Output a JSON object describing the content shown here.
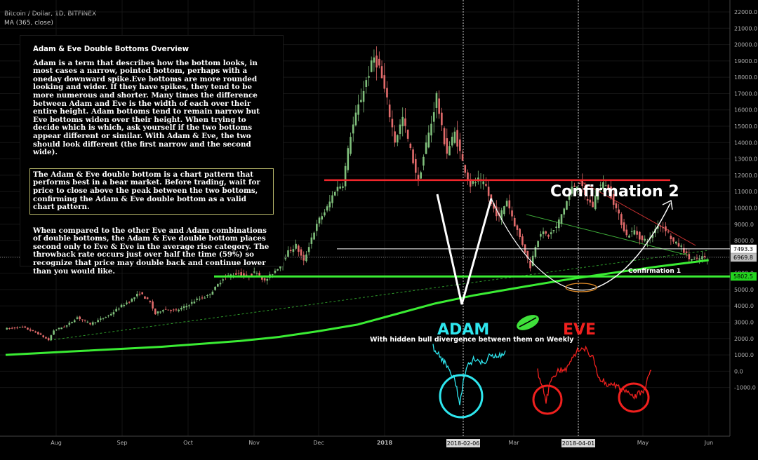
{
  "header": {
    "symbol": "Bitcoin / Dollar, 1D, BITFINEX",
    "indicator": "MA (365, close)"
  },
  "info_box": {
    "title": "Adam & Eve Double Bottoms Overview",
    "para1": "Adam is a term that describes how the bottom looks, in most cases a narrow, pointed bottom, perhaps with a oneday downward spike.Eve bottoms are more rounded looking and wider. If they have spikes, they tend to be more numerous and shorter. Many times the difference between Adam and Eve is the width of each over their entire height. Adam bottoms tend to remain narrow but Eve bottoms widen over their height. When trying to decide which is which, ask yourself if the two bottoms appear different or similar. With Adam & Eve, the two should look different (the first narrow and the second wide).",
    "para2": "The Adam & Eve double bottom is a chart pattern that performs best in a bear market. Before trading, wait for price to close above the peak between the two bottoms, confirming the Adam & Eve double bottom as a valid chart pattern.",
    "para3": "When compared to the other Eve and Adam combinations of double bottoms, the Adam & Eve double bottom places second only to Eve & Eve in the average rise category. The throwback rate occurs just over half the time (59%) so recognize that price may double back and continue lower than you would like."
  },
  "chart_data": {
    "type": "candlestick",
    "y_ticks": [
      "22000.0",
      "21000.0",
      "20000.0",
      "19000.0",
      "18000.0",
      "17000.0",
      "16000.0",
      "15000.0",
      "14000.0",
      "13000.0",
      "12000.0",
      "11000.0",
      "10000.0",
      "9000.0",
      "8000.0",
      "7000.0",
      "6000.0",
      "5000.0",
      "4000.0",
      "3000.0",
      "2000.0",
      "1000.0",
      "0.0",
      "-1000.0"
    ],
    "ylim": [
      -1400,
      22300
    ],
    "x_ticks": [
      "Aug",
      "Sep",
      "Oct",
      "Nov",
      "Dec",
      "2018",
      "Mar",
      "Apr",
      "May",
      "Jun"
    ],
    "x_highlight": [
      "2018-02-06",
      "2018-04-01"
    ],
    "price_labels": [
      {
        "text": "7493.3",
        "value": 7493.3,
        "color": "#ffffff"
      },
      {
        "text": "6969.8",
        "value": 6969.8,
        "color": "#d9d9d9"
      },
      {
        "text": "5802.5",
        "value": 5802.5,
        "color": "#22d41e"
      }
    ],
    "price_path": [
      [
        0,
        2600
      ],
      [
        7,
        2700
      ],
      [
        13,
        2300
      ],
      [
        17,
        1900
      ],
      [
        19,
        2500
      ],
      [
        24,
        2800
      ],
      [
        28,
        3300
      ],
      [
        33,
        2900
      ],
      [
        40,
        3400
      ],
      [
        45,
        4000
      ],
      [
        49,
        4400
      ],
      [
        52,
        4800
      ],
      [
        56,
        4200
      ],
      [
        58,
        3500
      ],
      [
        61,
        3800
      ],
      [
        66,
        3700
      ],
      [
        70,
        4000
      ],
      [
        74,
        4400
      ],
      [
        78,
        4600
      ],
      [
        81,
        5100
      ],
      [
        84,
        5700
      ],
      [
        87,
        5900
      ],
      [
        90,
        6000
      ],
      [
        93,
        5800
      ],
      [
        97,
        6100
      ],
      [
        100,
        5500
      ],
      [
        103,
        6000
      ],
      [
        106,
        6500
      ],
      [
        109,
        7300
      ],
      [
        112,
        7700
      ],
      [
        115,
        6700
      ],
      [
        118,
        8200
      ],
      [
        121,
        9300
      ],
      [
        124,
        10000
      ],
      [
        127,
        11100
      ],
      [
        130,
        11500
      ],
      [
        133,
        14500
      ],
      [
        136,
        16200
      ],
      [
        139,
        17800
      ],
      [
        142,
        19200
      ],
      [
        144,
        18600
      ],
      [
        147,
        16500
      ],
      [
        150,
        14100
      ],
      [
        153,
        15500
      ],
      [
        156,
        13500
      ],
      [
        159,
        11600
      ],
      [
        162,
        13900
      ],
      [
        164,
        15200
      ],
      [
        166,
        16900
      ],
      [
        168,
        14800
      ],
      [
        170,
        13400
      ],
      [
        173,
        14600
      ],
      [
        176,
        12800
      ],
      [
        179,
        11400
      ],
      [
        182,
        11700
      ],
      [
        185,
        11300
      ],
      [
        187,
        10200
      ],
      [
        190,
        9400
      ],
      [
        193,
        10500
      ],
      [
        196,
        9000
      ],
      [
        199,
        7800
      ],
      [
        202,
        6400
      ],
      [
        204,
        7700
      ],
      [
        206,
        8500
      ],
      [
        209,
        8300
      ],
      [
        212,
        8800
      ],
      [
        215,
        10000
      ],
      [
        218,
        11200
      ],
      [
        221,
        11600
      ],
      [
        223,
        10700
      ],
      [
        226,
        10100
      ],
      [
        228,
        11300
      ],
      [
        231,
        11500
      ],
      [
        233,
        10800
      ],
      [
        236,
        9500
      ],
      [
        239,
        8300
      ],
      [
        242,
        8600
      ],
      [
        245,
        8000
      ],
      [
        248,
        8100
      ],
      [
        251,
        9000
      ],
      [
        254,
        8700
      ],
      [
        257,
        7900
      ],
      [
        260,
        7600
      ],
      [
        263,
        6900
      ],
      [
        266,
        6800
      ],
      [
        268,
        7000
      ],
      [
        270,
        6800
      ]
    ],
    "ma365_path": [
      [
        0,
        1000
      ],
      [
        30,
        1250
      ],
      [
        60,
        1500
      ],
      [
        90,
        1850
      ],
      [
        105,
        2100
      ],
      [
        120,
        2450
      ],
      [
        135,
        2850
      ],
      [
        150,
        3500
      ],
      [
        165,
        4150
      ],
      [
        180,
        4650
      ],
      [
        200,
        5200
      ],
      [
        215,
        5600
      ],
      [
        230,
        5950
      ],
      [
        250,
        6400
      ],
      [
        270,
        6800
      ]
    ],
    "annotations": {
      "confirmation2": "Confirmation 2",
      "confirmation1": "Confirmation 1",
      "adam": "ADAM",
      "eve": "EVE",
      "divergence": "With hidden bull divergence between them on Weekly"
    }
  },
  "colors": {
    "background": "#000000",
    "up": "#7fbf7b",
    "down": "#e26b6b",
    "ma": "#3aec33",
    "resistance": "#f0262b",
    "adam": "#2ee6ee",
    "eve": "#f0201e"
  },
  "icons": [
    "leaf-icon"
  ]
}
